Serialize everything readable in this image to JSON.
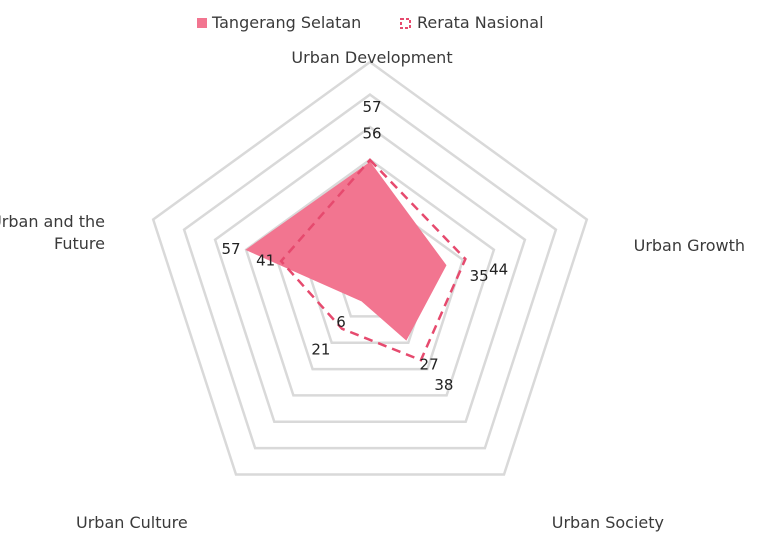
{
  "chart_data": {
    "type": "radar",
    "title": "",
    "categories": [
      "Urban Development",
      "Urban Growth",
      "Urban Society",
      "Urban Culture",
      "Urban and the Future"
    ],
    "category_lines": [
      [
        "Urban Development"
      ],
      [
        "Urban Growth"
      ],
      [
        "Urban Society"
      ],
      [
        "Urban Culture"
      ],
      [
        "Urban and the",
        "Future"
      ]
    ],
    "series": [
      {
        "name": "Tangerang Selatan",
        "values": [
          56,
          35,
          27,
          6,
          57
        ],
        "style": "filled",
        "color": "#f27590"
      },
      {
        "name": "Rerata Nasional",
        "values": [
          57,
          44,
          38,
          21,
          41
        ],
        "style": "dashed",
        "color": "#e64a6e"
      }
    ],
    "rlim": [
      0,
      100
    ],
    "rings": 7,
    "grid_color": "#d9d9d9",
    "legend_position": "top"
  }
}
